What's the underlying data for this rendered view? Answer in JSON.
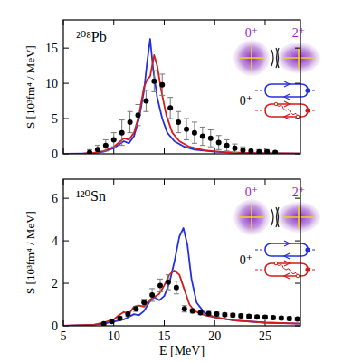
{
  "chart_data": [
    {
      "type": "line",
      "ylabel": "S [10³fm⁴ / MeV]",
      "annotations": [
        "²⁰⁸Pb",
        "0⁺",
        "2⁺",
        "0⁺"
      ],
      "xlim": [
        5,
        28.5
      ],
      "xticks": [
        5,
        10,
        15,
        20,
        25
      ],
      "ylim": [
        0,
        19
      ],
      "yticks": [
        0,
        5,
        10,
        15
      ],
      "tick_labels": "y",
      "series": [
        {
          "type": "line",
          "line_style": "solid",
          "color": "#2430e0",
          "x": [
            5,
            7,
            8,
            9,
            10,
            10.5,
            11,
            11.5,
            12,
            12.5,
            13,
            13.3,
            13.6,
            13.9,
            14.3,
            14.8,
            15.3,
            16,
            17,
            18,
            20,
            22,
            25,
            28.5
          ],
          "values": [
            0,
            0.05,
            0.1,
            0.3,
            0.8,
            1.3,
            1.8,
            1.5,
            2.5,
            5,
            9,
            13,
            16.3,
            12,
            8,
            5,
            3,
            1.8,
            1.0,
            0.6,
            0.3,
            0.15,
            0.08,
            0.05
          ]
        },
        {
          "type": "line",
          "line_style": "solid",
          "color": "#d41c1c",
          "x": [
            5,
            7,
            8,
            9,
            10,
            10.5,
            11,
            11.5,
            12,
            12.5,
            13,
            13.3,
            13.6,
            14.0,
            14.3,
            14.7,
            15.2,
            15.8,
            16.5,
            17.5,
            19,
            21,
            24,
            28.5
          ],
          "values": [
            0,
            0.05,
            0.15,
            0.4,
            1.0,
            1.6,
            2.2,
            2.0,
            3.0,
            5.5,
            9.5,
            10.5,
            11.0,
            14.0,
            12.5,
            9,
            5.5,
            3.0,
            1.8,
            1.0,
            0.5,
            0.25,
            0.1,
            0.05
          ]
        },
        {
          "type": "scatter",
          "marker": "circle",
          "color": "#000000",
          "x": [
            7.6,
            8.4,
            9.2,
            10.0,
            10.8,
            11.6,
            12.4,
            13.2,
            14.0,
            14.8,
            15.6,
            16.4,
            17.2,
            18.0,
            18.8,
            19.6,
            20.4,
            21.2,
            22.0,
            22.8,
            23.6,
            24.4,
            25.2,
            26.0
          ],
          "values": [
            0.2,
            0.6,
            1.2,
            2.0,
            3.0,
            4.5,
            5.5,
            7.5,
            10.3,
            9.8,
            6.5,
            4.5,
            3.5,
            3.0,
            2.5,
            2.2,
            1.6,
            1.2,
            0.8,
            0.5,
            0.4,
            0.3,
            0.3,
            0.2
          ],
          "error": [
            0.4,
            0.6,
            0.8,
            1.0,
            1.8,
            1.5,
            1.5,
            1.5,
            1.5,
            1.5,
            1.5,
            1.5,
            1.5,
            1.5,
            1.3,
            1.2,
            1.0,
            0.8,
            0.6,
            0.5,
            0.4,
            0.3,
            0.3,
            0.2
          ]
        }
      ]
    },
    {
      "type": "line",
      "xlabel": "E [MeV]",
      "ylabel": "S [10³fm⁴ / MeV]",
      "annotations": [
        "¹²⁰Sn",
        "0⁺",
        "2⁺",
        "0⁺"
      ],
      "xlim": [
        5,
        28.5
      ],
      "xticks": [
        5,
        10,
        15,
        20,
        25
      ],
      "ylim": [
        0,
        6.9
      ],
      "yticks": [
        0,
        2,
        4,
        6
      ],
      "series": [
        {
          "type": "line",
          "line_style": "solid",
          "color": "#2430e0",
          "x": [
            5,
            8,
            9,
            10,
            11,
            12,
            12.5,
            13,
            13.5,
            14,
            14.5,
            15,
            15.5,
            16,
            16.5,
            16.9,
            17.3,
            17.7,
            18.2,
            19,
            20,
            22,
            25,
            28.5
          ],
          "values": [
            0,
            0.05,
            0.1,
            0.2,
            0.3,
            0.55,
            0.5,
            0.7,
            1.1,
            1.35,
            1.2,
            1.4,
            2.0,
            3.0,
            4.2,
            4.6,
            3.8,
            2.2,
            1.1,
            0.6,
            0.4,
            0.25,
            0.15,
            0.1
          ]
        },
        {
          "type": "line",
          "line_style": "solid",
          "color": "#d41c1c",
          "x": [
            5,
            8,
            9,
            10,
            10.5,
            11,
            11.5,
            12,
            12.5,
            13,
            13.5,
            14,
            14.5,
            15,
            15.5,
            16,
            16.5,
            17,
            17.5,
            18,
            19,
            20,
            22,
            25,
            28.5
          ],
          "values": [
            0,
            0.05,
            0.15,
            0.3,
            0.5,
            0.65,
            0.55,
            0.9,
            0.95,
            0.9,
            1.2,
            1.35,
            1.5,
            1.9,
            2.4,
            2.6,
            2.4,
            1.7,
            1.0,
            0.7,
            0.5,
            0.4,
            0.25,
            0.15,
            0.1
          ]
        },
        {
          "type": "scatter",
          "marker": "circle",
          "color": "#000000",
          "x": [
            9.0,
            9.8,
            10.6,
            11.4,
            12.2,
            13.0,
            13.8,
            14.6,
            15.4,
            16.2,
            17.0,
            17.8,
            18.6,
            19.4,
            20.2,
            21.0,
            21.8,
            22.6,
            23.4,
            24.2,
            25.0,
            25.8,
            26.6,
            27.4,
            28.2
          ],
          "values": [
            0.1,
            0.2,
            0.35,
            0.55,
            0.8,
            1.1,
            1.45,
            1.9,
            2.05,
            1.8,
            0.8,
            0.7,
            0.62,
            0.58,
            0.55,
            0.52,
            0.5,
            0.47,
            0.45,
            0.42,
            0.4,
            0.38,
            0.36,
            0.34,
            0.32
          ],
          "error": [
            0.05,
            0.05,
            0.08,
            0.1,
            0.12,
            0.15,
            0.3,
            0.3,
            0.35,
            0.3,
            0.15,
            0.1,
            0.1,
            0.1,
            0.1,
            0.08,
            0.08,
            0.08,
            0.08,
            0.08,
            0.08,
            0.08,
            0.08,
            0.08,
            0.08
          ]
        }
      ]
    }
  ]
}
